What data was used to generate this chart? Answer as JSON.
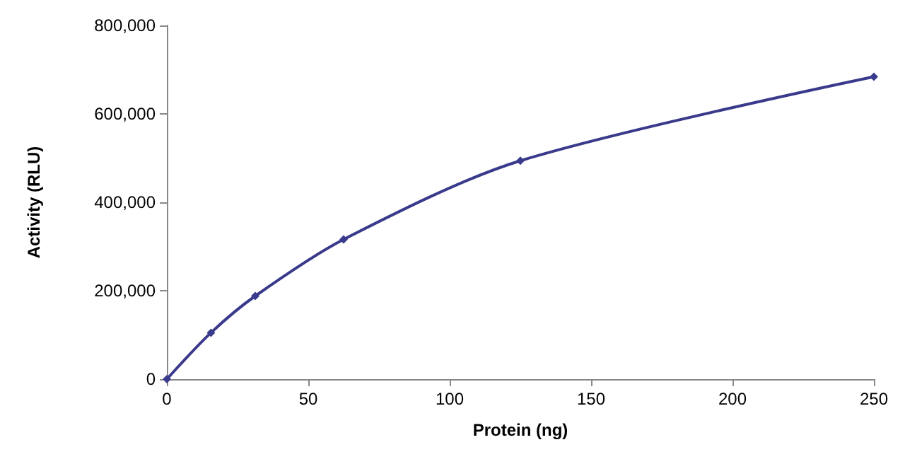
{
  "chart_data": {
    "type": "line",
    "xlabel": "Protein (ng)",
    "ylabel": "Activity (RLU)",
    "x": [
      0,
      15.6,
      31.25,
      62.5,
      125,
      250
    ],
    "series": [
      {
        "color": "#3a3a8c",
        "values": [
          0,
          105000,
          188000,
          316000,
          494000,
          684000
        ]
      }
    ],
    "xlim": [
      0,
      250
    ],
    "xticks": [
      0,
      50,
      100,
      150,
      200,
      250
    ],
    "ylim": [
      0,
      800000
    ],
    "yticks": [
      0,
      {
        "value": 200000,
        "label": "200,000"
      },
      {
        "value": 400000,
        "label": "400,000"
      },
      {
        "value": 600000,
        "label": "600,000"
      },
      {
        "value": 800000,
        "label": "800,000"
      }
    ],
    "marker": "diamond",
    "grid": false
  }
}
